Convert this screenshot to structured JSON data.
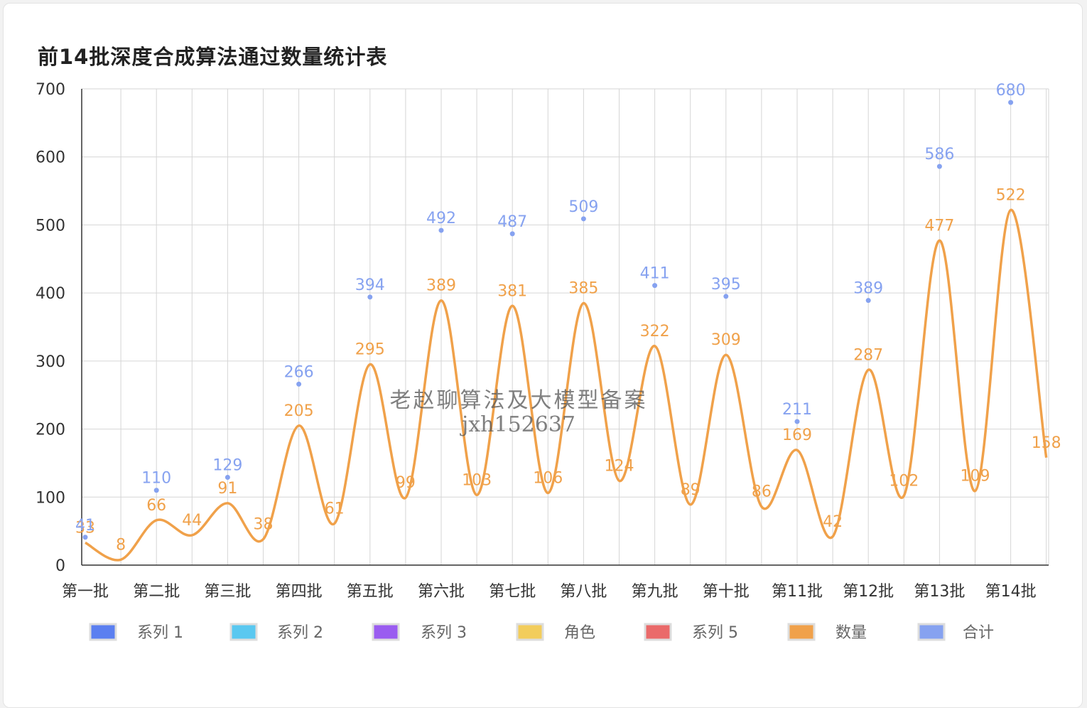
{
  "chart_data": {
    "type": "line",
    "title": "前14批深度合成算法通过数量统计表",
    "ylim": [
      0,
      700
    ],
    "y_ticks": [
      "0",
      "100",
      "200",
      "300",
      "400",
      "500",
      "600",
      "700"
    ],
    "categories": [
      "第一批",
      "第二批",
      "第三批",
      "第四批",
      "第五批",
      "第六批",
      "第七批",
      "第八批",
      "第九批",
      "第十批",
      "第11批",
      "第12批",
      "第13批",
      "第14批"
    ],
    "grid": true,
    "legend_placement": "bottom",
    "legend": [
      {
        "name": "系列 1",
        "color": "#5b7ff0"
      },
      {
        "name": "系列 2",
        "color": "#5ac8f0"
      },
      {
        "name": "系列 3",
        "color": "#9a5cf0"
      },
      {
        "name": "角色",
        "color": "#f2cd5c"
      },
      {
        "name": "系列 5",
        "color": "#ea6a6a"
      },
      {
        "name": "数量",
        "color": "#f0a14a"
      },
      {
        "name": "合计",
        "color": "#86a2f0"
      }
    ],
    "series": [
      {
        "name": "数量",
        "color": "#f0a14a",
        "x": [
          1,
          1.5,
          2,
          2.5,
          3,
          3.5,
          4,
          4.5,
          5,
          5.5,
          6,
          6.5,
          7,
          7.5,
          8,
          8.5,
          9,
          9.5,
          10,
          10.5,
          11,
          11.5,
          12,
          12.5,
          13,
          13.5,
          14,
          14.5
        ],
        "values": [
          33,
          8,
          66,
          44,
          91,
          38,
          205,
          61,
          295,
          99,
          389,
          103,
          381,
          106,
          385,
          124,
          322,
          89,
          309,
          86,
          169,
          42,
          287,
          102,
          477,
          109,
          522,
          158
        ]
      },
      {
        "name": "合计",
        "color": "#86a2f0",
        "x": [
          1,
          2,
          3,
          4,
          5,
          6,
          7,
          8,
          9,
          10,
          11,
          12,
          13,
          14
        ],
        "values": [
          41,
          110,
          129,
          266,
          394,
          492,
          487,
          509,
          411,
          395,
          211,
          389,
          586,
          680
        ]
      }
    ]
  },
  "watermark": {
    "line1": "老赵聊算法及大模型备案",
    "line2": "jxh152637"
  }
}
